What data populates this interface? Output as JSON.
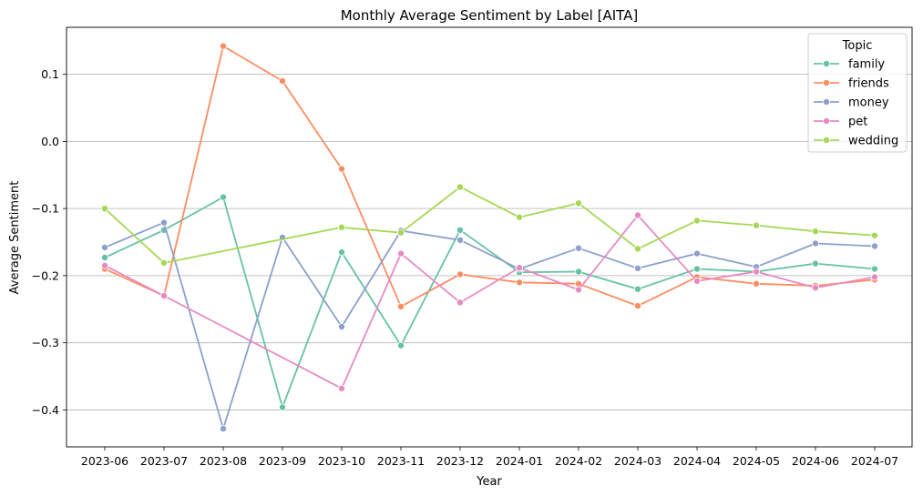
{
  "chart_data": {
    "type": "line",
    "title": "Monthly Average Sentiment by Label [AITA]",
    "xlabel": "Year",
    "ylabel": "Average Sentiment",
    "categories": [
      "2023-06",
      "2023-07",
      "2023-08",
      "2023-09",
      "2023-10",
      "2023-11",
      "2023-12",
      "2024-01",
      "2024-02",
      "2024-03",
      "2024-04",
      "2024-05",
      "2024-06",
      "2024-07"
    ],
    "ylim": [
      -0.455,
      0.17
    ],
    "yticks": [
      0.1,
      0.0,
      -0.1,
      -0.2,
      -0.3,
      -0.4
    ],
    "ytick_labels": [
      "0.1",
      "0.0",
      "−0.1",
      "−0.2",
      "−0.3",
      "−0.4"
    ],
    "grid": "horizontal",
    "legend": {
      "title": "Topic",
      "placement": "top-right"
    },
    "series": [
      {
        "name": "family",
        "color": "#66c2a5",
        "values": [
          -0.173,
          -0.132,
          -0.083,
          -0.396,
          -0.165,
          -0.304,
          -0.132,
          -0.195,
          -0.194,
          -0.22,
          -0.19,
          -0.194,
          -0.182,
          -0.19
        ]
      },
      {
        "name": "friends",
        "color": "#fc8d62",
        "values": [
          -0.19,
          -0.23,
          0.142,
          0.09,
          -0.041,
          -0.246,
          -0.198,
          -0.21,
          -0.212,
          -0.245,
          -0.202,
          -0.212,
          -0.215,
          -0.206
        ]
      },
      {
        "name": "money",
        "color": "#8da0cb",
        "values": [
          -0.158,
          -0.121,
          -0.428,
          -0.143,
          -0.276,
          -0.133,
          -0.147,
          -0.19,
          -0.159,
          -0.189,
          -0.167,
          -0.187,
          -0.152,
          -0.156
        ]
      },
      {
        "name": "pet",
        "color": "#e78ac3",
        "x": [
          "2023-06",
          "2023-07",
          "2023-10",
          "2023-11",
          "2023-12",
          "2024-01",
          "2024-02",
          "2024-03",
          "2024-04",
          "2024-05",
          "2024-06",
          "2024-07"
        ],
        "values": [
          -0.185,
          -0.23,
          -0.368,
          -0.167,
          -0.24,
          -0.188,
          -0.221,
          -0.11,
          -0.208,
          -0.194,
          -0.218,
          -0.202
        ]
      },
      {
        "name": "wedding",
        "color": "#a6d854",
        "x": [
          "2023-06",
          "2023-07",
          "2023-10",
          "2023-11",
          "2023-12",
          "2024-01",
          "2024-02",
          "2024-03",
          "2024-04",
          "2024-05",
          "2024-06",
          "2024-07"
        ],
        "values": [
          -0.1,
          -0.181,
          -0.128,
          -0.136,
          -0.068,
          -0.113,
          -0.092,
          -0.16,
          -0.118,
          -0.125,
          -0.134,
          -0.14
        ]
      }
    ]
  }
}
